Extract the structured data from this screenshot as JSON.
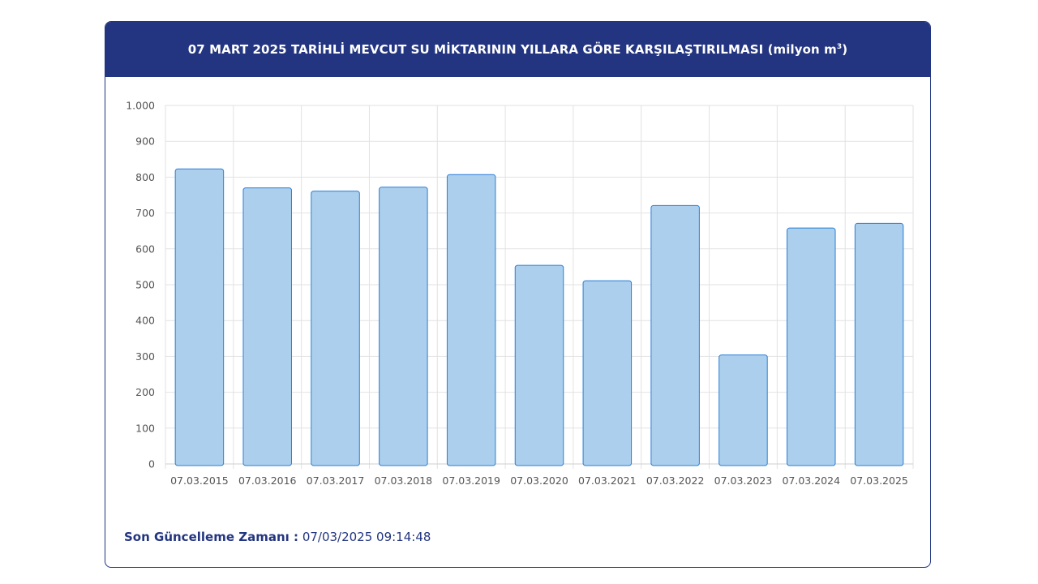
{
  "header": {
    "title_main": "07 MART 2025 TARİHLİ MEVCUT SU MİKTARININ YILLARA GÖRE KARŞILAŞTIRILMASI (milyon m",
    "title_sup": "3",
    "title_tail": ")"
  },
  "footer": {
    "label": "Son Güncelleme Zamanı :",
    "value": "07/03/2025 09:14:48"
  },
  "colors": {
    "header_bg": "#233580",
    "bar_fill": "#abcfec",
    "bar_stroke": "#2a7fd6",
    "grid": "#e2e2e2"
  },
  "chart_data": {
    "type": "bar",
    "title": "07 MART 2025 TARİHLİ MEVCUT SU MİKTARININ YILLARA GÖRE KARŞILAŞTIRILMASI (milyon m³)",
    "xlabel": "",
    "ylabel": "",
    "categories": [
      "07.03.2015",
      "07.03.2016",
      "07.03.2017",
      "07.03.2018",
      "07.03.2019",
      "07.03.2020",
      "07.03.2021",
      "07.03.2022",
      "07.03.2023",
      "07.03.2024",
      "07.03.2025"
    ],
    "values": [
      823,
      770,
      761,
      772,
      807,
      554,
      511,
      721,
      304,
      658,
      671
    ],
    "ylim": [
      0,
      1000
    ],
    "y_ticks": [
      0,
      100,
      200,
      300,
      400,
      500,
      600,
      700,
      800,
      900,
      1000
    ],
    "y_tick_labels": [
      "0",
      "100",
      "200",
      "300",
      "400",
      "500",
      "600",
      "700",
      "800",
      "900",
      "1.000"
    ],
    "grid": true,
    "legend": "none"
  }
}
